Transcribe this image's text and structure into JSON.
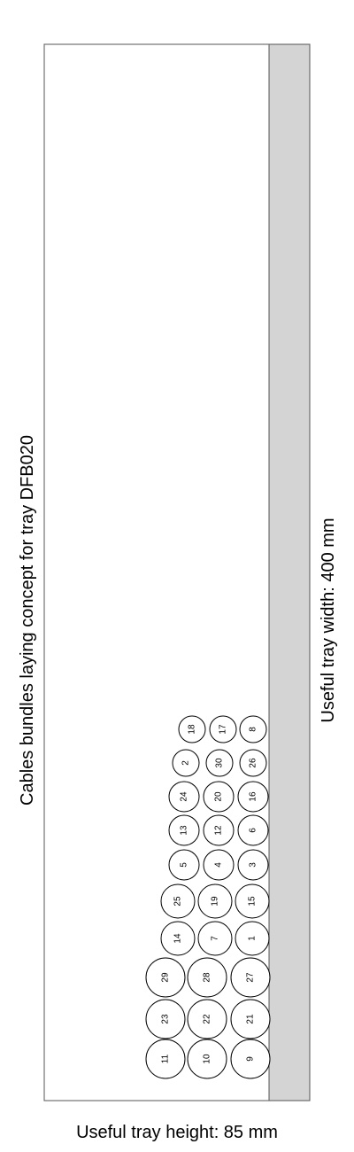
{
  "title": "Cables bundles laying concept for tray DFB020",
  "width_label": "Useful tray width: 400 mm",
  "height_label": "Useful tray height: 85 mm",
  "colors": {
    "tray_border": "#555555",
    "tray_fill": "#ffffff",
    "strip_fill": "#d4d4d4",
    "cable_stroke": "#000000",
    "cable_fill": "#ffffff",
    "text": "#000000"
  },
  "cables": [
    {
      "label": "11"
    },
    {
      "label": "10"
    },
    {
      "label": "9"
    },
    {
      "label": "23"
    },
    {
      "label": "22"
    },
    {
      "label": "21"
    },
    {
      "label": "29"
    },
    {
      "label": "28"
    },
    {
      "label": "27"
    },
    {
      "label": "14"
    },
    {
      "label": "7"
    },
    {
      "label": "1"
    },
    {
      "label": "25"
    },
    {
      "label": "19"
    },
    {
      "label": "15"
    },
    {
      "label": "5"
    },
    {
      "label": "4"
    },
    {
      "label": "3"
    },
    {
      "label": "13"
    },
    {
      "label": "12"
    },
    {
      "label": "6"
    },
    {
      "label": "24"
    },
    {
      "label": "20"
    },
    {
      "label": "16"
    },
    {
      "label": "2"
    },
    {
      "label": "30"
    },
    {
      "label": "26"
    },
    {
      "label": "18"
    },
    {
      "label": "17"
    },
    {
      "label": "8"
    }
  ]
}
